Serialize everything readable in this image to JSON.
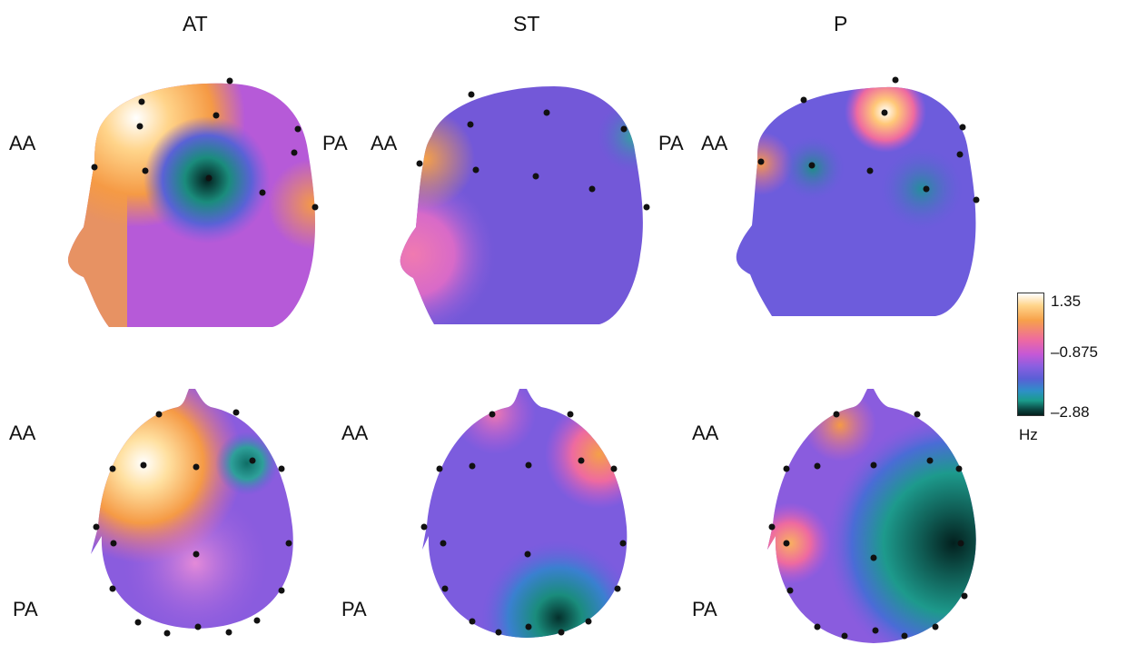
{
  "columns": [
    "AT",
    "ST",
    "P"
  ],
  "rows": {
    "side": {
      "left_label": "AA",
      "right_label": "PA"
    },
    "top": {
      "upper_label": "AA",
      "lower_label": "PA"
    }
  },
  "colorbar": {
    "max": "1.35",
    "mid": "–0.875",
    "min": "–2.88",
    "unit": "Hz",
    "colors": [
      "#ffffff",
      "#f7a14a",
      "#ee6aa0",
      "#c558d6",
      "#5a5fd6",
      "#1a9c8c",
      "#03201e"
    ]
  }
}
